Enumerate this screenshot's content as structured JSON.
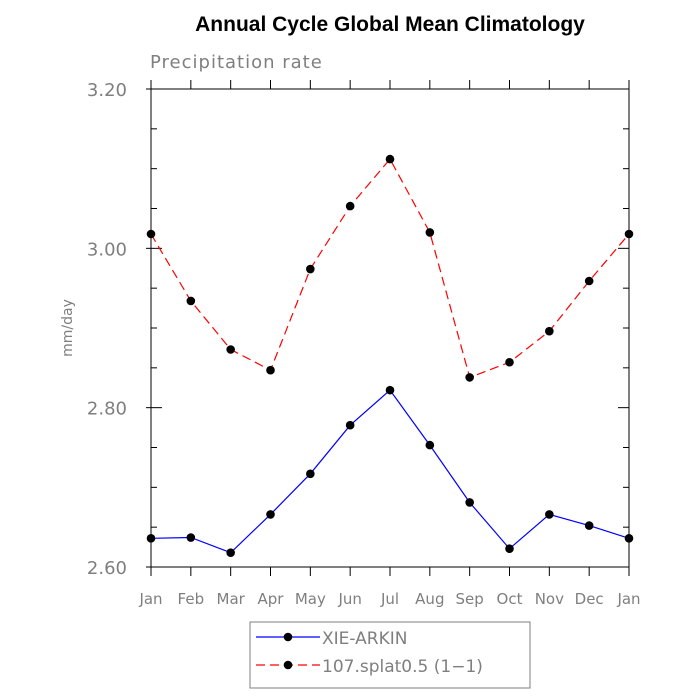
{
  "chart_data": {
    "type": "line",
    "title": "Annual Cycle Global Mean Climatology",
    "subtitle": "Precipitation rate",
    "xlabel": "",
    "ylabel": "mm/day",
    "ylim": [
      2.6,
      3.2
    ],
    "yticks": [
      2.6,
      2.8,
      3.0,
      3.2
    ],
    "ytick_labels": [
      "2.60",
      "2.80",
      "3.00",
      "3.20"
    ],
    "categories": [
      "Jan",
      "Feb",
      "Mar",
      "Apr",
      "May",
      "Jun",
      "Jul",
      "Aug",
      "Sep",
      "Oct",
      "Nov",
      "Dec",
      "Jan"
    ],
    "grid": false,
    "legend_position": "bottom-center",
    "series": [
      {
        "name": "XIE-ARKIN",
        "color": "#0000ff",
        "dashed": false,
        "marker": "filled-circle",
        "values": [
          2.636,
          2.637,
          2.618,
          2.666,
          2.717,
          2.778,
          2.822,
          2.753,
          2.681,
          2.623,
          2.666,
          2.652,
          2.636
        ]
      },
      {
        "name": "107.splat0.5 (1−1)",
        "color": "#ff0000",
        "dashed": true,
        "marker": "filled-circle",
        "values": [
          3.018,
          2.934,
          2.873,
          2.847,
          2.974,
          3.053,
          3.112,
          3.02,
          2.838,
          2.857,
          2.896,
          2.959,
          3.018
        ]
      }
    ]
  }
}
